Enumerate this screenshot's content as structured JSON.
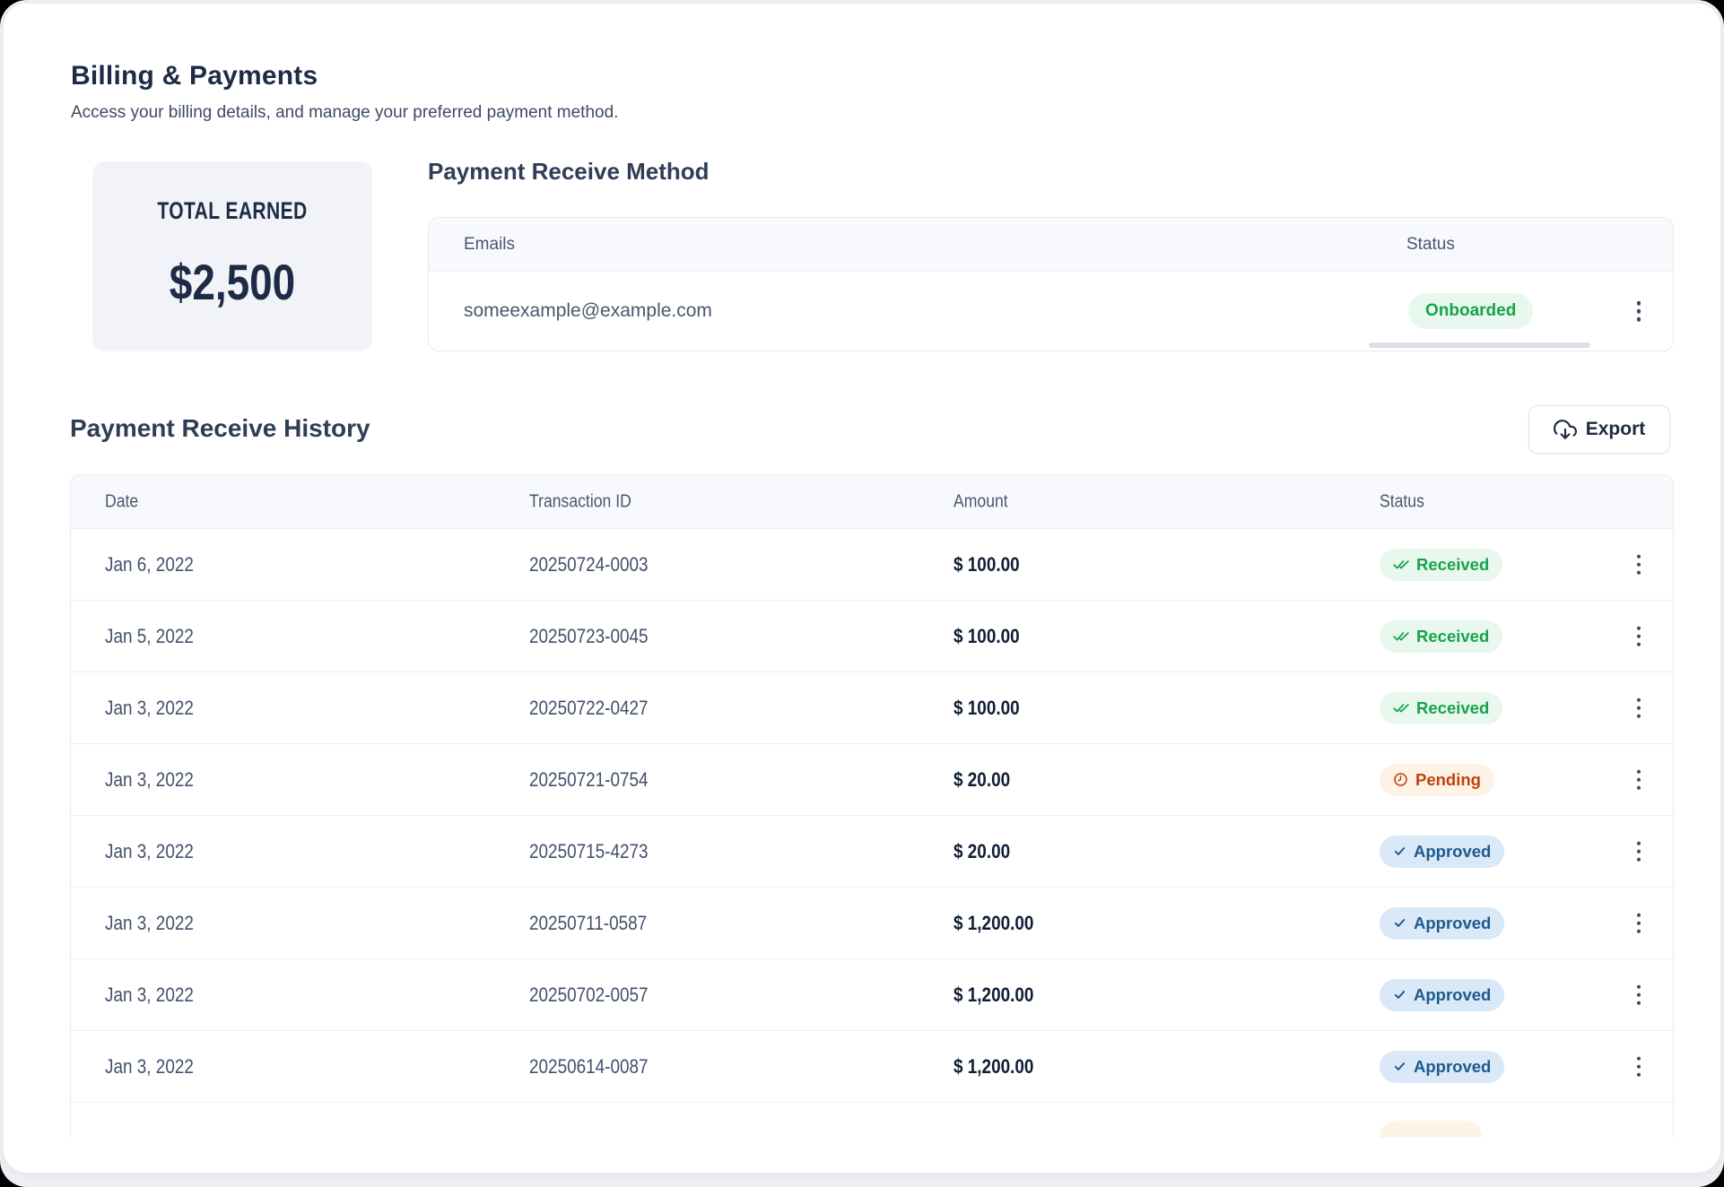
{
  "page": {
    "title": "Billing & Payments",
    "subtitle": "Access your billing details, and manage your preferred payment method."
  },
  "total_card": {
    "label": "TOTAL EARNED",
    "value": "$2,500"
  },
  "method": {
    "title": "Payment Receive Method",
    "headers": {
      "emails": "Emails",
      "status": "Status"
    },
    "row": {
      "email": "someexample@example.com",
      "status": "Onboarded",
      "status_type": "onboarded",
      "menu_icon": "kebab-menu-icon"
    }
  },
  "history": {
    "title": "Payment Receive History",
    "export_label": "Export",
    "export_icon": "cloud-download-icon",
    "headers": {
      "date": "Date",
      "transaction_id": "Transaction ID",
      "amount": "Amount",
      "status": "Status"
    },
    "rows": [
      {
        "date": "Jan 6, 2022",
        "transaction_id": "20250724-0003",
        "amount": "$ 100.00",
        "status": "Received",
        "status_type": "received",
        "icon": "double-check"
      },
      {
        "date": "Jan 5, 2022",
        "transaction_id": "20250723-0045",
        "amount": "$ 100.00",
        "status": "Received",
        "status_type": "received",
        "icon": "double-check"
      },
      {
        "date": "Jan 3, 2022",
        "transaction_id": "20250722-0427",
        "amount": "$ 100.00",
        "status": "Received",
        "status_type": "received",
        "icon": "double-check"
      },
      {
        "date": "Jan 3, 2022",
        "transaction_id": "20250721-0754",
        "amount": "$ 20.00",
        "status": "Pending",
        "status_type": "pending",
        "icon": "clock"
      },
      {
        "date": "Jan 3, 2022",
        "transaction_id": "20250715-4273",
        "amount": "$ 20.00",
        "status": "Approved",
        "status_type": "approved",
        "icon": "check"
      },
      {
        "date": "Jan 3, 2022",
        "transaction_id": "20250711-0587",
        "amount": "$ 1,200.00",
        "status": "Approved",
        "status_type": "approved",
        "icon": "check"
      },
      {
        "date": "Jan 3, 2022",
        "transaction_id": "20250702-0057",
        "amount": "$ 1,200.00",
        "status": "Approved",
        "status_type": "approved",
        "icon": "check"
      },
      {
        "date": "Jan 3, 2022",
        "transaction_id": "20250614-0087",
        "amount": "$ 1,200.00",
        "status": "Approved",
        "status_type": "approved",
        "icon": "check"
      }
    ]
  },
  "colors": {
    "heading_navy": "#1d2b45",
    "body_slate": "#3e4b63",
    "badge_green_text": "#16a34a",
    "badge_green_bg": "#e8f8ee",
    "badge_orange_text": "#c2410c",
    "badge_orange_bg": "#fdf3e6",
    "badge_blue_text": "#1b5a8d",
    "badge_blue_bg": "#d9e9f8",
    "table_header_bg": "#f8f9fc",
    "page_bg": "#edeff5"
  }
}
